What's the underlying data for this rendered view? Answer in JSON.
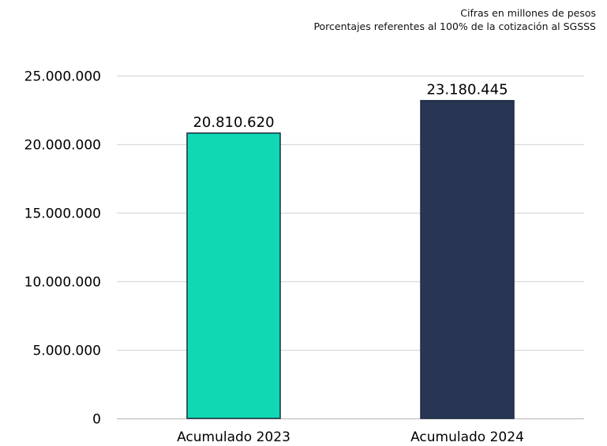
{
  "notes": {
    "line1": "Cifras en millones de pesos",
    "line2": "Porcentajes referentes al 100% de la cotización al SGSSS"
  },
  "chart_data": {
    "type": "bar",
    "categories": [
      "Acumulado 2023",
      "Acumulado 2024"
    ],
    "values": [
      20810620,
      23180445
    ],
    "value_labels": [
      "20.810.620",
      "23.180.445"
    ],
    "colors": [
      "#10d8b3",
      "#283654"
    ],
    "ylim": [
      0,
      25000000
    ],
    "yticks": [
      0,
      5000000,
      10000000,
      15000000,
      20000000,
      25000000
    ],
    "ytick_labels": [
      "0",
      "5.000.000",
      "10.000.000",
      "15.000.000",
      "20.000.000",
      "25.000.000"
    ],
    "grid": true,
    "title": "",
    "xlabel": "",
    "ylabel": ""
  }
}
